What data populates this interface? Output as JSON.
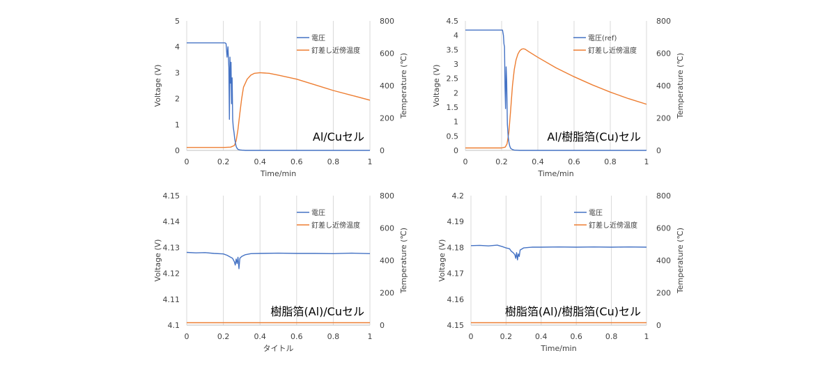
{
  "colors": {
    "voltage": "#4472C4",
    "temperature": "#ED7D31",
    "grid": "#D9D9D9",
    "text": "#404040"
  },
  "chart_data": [
    {
      "type": "line",
      "xlabel": "Time/min",
      "ylabel": "Voltage (V)",
      "y2label": "Temperature (℃)",
      "xlim": [
        0,
        1
      ],
      "xticks": [
        "0",
        "0.2",
        "0.4",
        "0.6",
        "0.8",
        "1"
      ],
      "ylim": [
        0,
        5
      ],
      "yticks": [
        "0",
        "1",
        "2",
        "3",
        "4",
        "5"
      ],
      "y2lim": [
        0,
        800
      ],
      "y2ticks": [
        "0",
        "200",
        "400",
        "600",
        "800"
      ],
      "grid": "vertical",
      "legend_position": "top-right",
      "annotation": "Al/Cuセル",
      "series": [
        {
          "name": "電圧",
          "axis": "left",
          "color": "#4472C4",
          "x": [
            0,
            0.2,
            0.21,
            0.215,
            0.22,
            0.225,
            0.23,
            0.233,
            0.236,
            0.239,
            0.242,
            0.245,
            0.248,
            0.251,
            0.254,
            0.258,
            0.262,
            0.266,
            0.27,
            0.275,
            0.28,
            0.29,
            0.3,
            0.32,
            1
          ],
          "y": [
            4.15,
            4.15,
            4.15,
            4.12,
            3.6,
            4.0,
            3.2,
            1.2,
            3.6,
            2.6,
            3.4,
            1.8,
            2.8,
            1.2,
            0.9,
            0.7,
            0.45,
            0.28,
            0.15,
            0.08,
            0.04,
            0.02,
            0.01,
            0,
            0
          ]
        },
        {
          "name": "釘差し近傍温度",
          "axis": "right",
          "color": "#ED7D31",
          "x": [
            0,
            0.2,
            0.24,
            0.26,
            0.27,
            0.28,
            0.29,
            0.3,
            0.31,
            0.33,
            0.35,
            0.37,
            0.4,
            0.45,
            0.5,
            0.6,
            0.7,
            0.8,
            0.9,
            1
          ],
          "y": [
            18,
            18,
            20,
            30,
            60,
            130,
            230,
            320,
            390,
            440,
            465,
            476,
            480,
            476,
            465,
            440,
            405,
            370,
            340,
            310
          ]
        }
      ]
    },
    {
      "type": "line",
      "xlabel": "Time/min",
      "ylabel": "Voltage (V)",
      "y2label": "Temperature (℃)",
      "xlim": [
        0,
        1
      ],
      "xticks": [
        "0",
        "0.2",
        "0.4",
        "0.6",
        "0.8",
        "1"
      ],
      "ylim": [
        0,
        4.5
      ],
      "yticks": [
        "0",
        "0.5",
        "1",
        "1.5",
        "2",
        "2.5",
        "3",
        "3.5",
        "4",
        "4.5"
      ],
      "y2lim": [
        0,
        800
      ],
      "y2ticks": [
        "0",
        "200",
        "400",
        "600",
        "800"
      ],
      "grid": "vertical",
      "legend_position": "top-right",
      "annotation": "Al/樹脂箔(Cu)セル",
      "series": [
        {
          "name": "電圧(ref)",
          "axis": "left",
          "color": "#4472C4",
          "x": [
            0,
            0.2,
            0.205,
            0.21,
            0.213,
            0.216,
            0.219,
            0.222,
            0.225,
            0.228,
            0.232,
            0.236,
            0.24,
            0.245,
            0.25,
            0.26,
            0.27,
            0.3,
            1
          ],
          "y": [
            4.18,
            4.18,
            4.18,
            4.0,
            3.7,
            3.6,
            2.2,
            1.45,
            2.9,
            2.4,
            0.9,
            0.5,
            0.3,
            0.15,
            0.07,
            0.03,
            0.01,
            0,
            0
          ]
        },
        {
          "name": "釘差し近傍温度",
          "axis": "right",
          "color": "#ED7D31",
          "x": [
            0,
            0.2,
            0.22,
            0.23,
            0.24,
            0.25,
            0.26,
            0.27,
            0.28,
            0.29,
            0.3,
            0.31,
            0.32,
            0.33,
            0.35,
            0.4,
            0.5,
            0.6,
            0.7,
            0.8,
            0.9,
            1
          ],
          "y": [
            15,
            15,
            20,
            40,
            110,
            250,
            400,
            500,
            560,
            595,
            615,
            625,
            628,
            625,
            610,
            575,
            510,
            455,
            405,
            360,
            320,
            285
          ]
        }
      ]
    },
    {
      "type": "line",
      "xlabel": "タイトル",
      "ylabel": "Voltage (V)",
      "y2label": "Temperature (℃)",
      "xlim": [
        0,
        1
      ],
      "xticks": [
        "0",
        "0.2",
        "0.4",
        "0.6",
        "0.8",
        "1"
      ],
      "ylim": [
        4.1,
        4.15
      ],
      "yticks": [
        "4.1",
        "4.11",
        "4.12",
        "4.13",
        "4.14",
        "4.15"
      ],
      "y2lim": [
        0,
        800
      ],
      "y2ticks": [
        "0",
        "200",
        "400",
        "600",
        "800"
      ],
      "grid": "vertical",
      "legend_position": "top-right",
      "annotation": "樹脂箔(Al)/Cuセル",
      "series": [
        {
          "name": "電圧",
          "axis": "left",
          "color": "#4472C4",
          "x": [
            0,
            0.05,
            0.1,
            0.15,
            0.2,
            0.22,
            0.24,
            0.25,
            0.26,
            0.265,
            0.27,
            0.275,
            0.28,
            0.285,
            0.29,
            0.3,
            0.32,
            0.35,
            0.4,
            0.5,
            0.6,
            0.7,
            0.8,
            0.9,
            1
          ],
          "y": [
            4.1281,
            4.1279,
            4.128,
            4.1277,
            4.1275,
            4.127,
            4.1262,
            4.1258,
            4.1245,
            4.1232,
            4.1255,
            4.1238,
            4.1262,
            4.1218,
            4.1258,
            4.1265,
            4.1272,
            4.1276,
            4.1277,
            4.1278,
            4.1277,
            4.1277,
            4.1276,
            4.1278,
            4.1276
          ]
        },
        {
          "name": "釘差し近傍温度",
          "axis": "right",
          "color": "#ED7D31",
          "x": [
            0,
            1
          ],
          "y": [
            15,
            15
          ]
        }
      ]
    },
    {
      "type": "line",
      "xlabel": "Time/min",
      "ylabel": "Voltage (V)",
      "y2label": "Temperature (℃)",
      "xlim": [
        0,
        1
      ],
      "xticks": [
        "0",
        "0.2",
        "0.4",
        "0.6",
        "0.8",
        "1"
      ],
      "ylim": [
        4.15,
        4.2
      ],
      "yticks": [
        "4.15",
        "4.16",
        "4.17",
        "4.18",
        "4.19",
        "4.2"
      ],
      "y2lim": [
        0,
        800
      ],
      "y2ticks": [
        "0",
        "200",
        "400",
        "600",
        "800"
      ],
      "grid": "vertical",
      "legend_position": "top-right",
      "annotation": "樹脂箔(Al)/樹脂箔(Cu)セル",
      "series": [
        {
          "name": "電圧",
          "axis": "left",
          "color": "#4472C4",
          "x": [
            0,
            0.05,
            0.1,
            0.15,
            0.18,
            0.2,
            0.22,
            0.23,
            0.24,
            0.25,
            0.255,
            0.26,
            0.265,
            0.27,
            0.275,
            0.28,
            0.3,
            0.35,
            0.4,
            0.5,
            0.6,
            0.7,
            0.8,
            0.9,
            1
          ],
          "y": [
            4.1807,
            4.1808,
            4.1806,
            4.1809,
            4.1803,
            4.1798,
            4.1795,
            4.1785,
            4.178,
            4.1772,
            4.1758,
            4.178,
            4.1752,
            4.1775,
            4.1765,
            4.179,
            4.1798,
            4.1801,
            4.1801,
            4.1802,
            4.1801,
            4.1802,
            4.1801,
            4.1802,
            4.1801
          ]
        },
        {
          "name": "釘差し近傍温度",
          "axis": "right",
          "color": "#ED7D31",
          "x": [
            0,
            1
          ],
          "y": [
            15,
            15
          ]
        }
      ]
    }
  ]
}
